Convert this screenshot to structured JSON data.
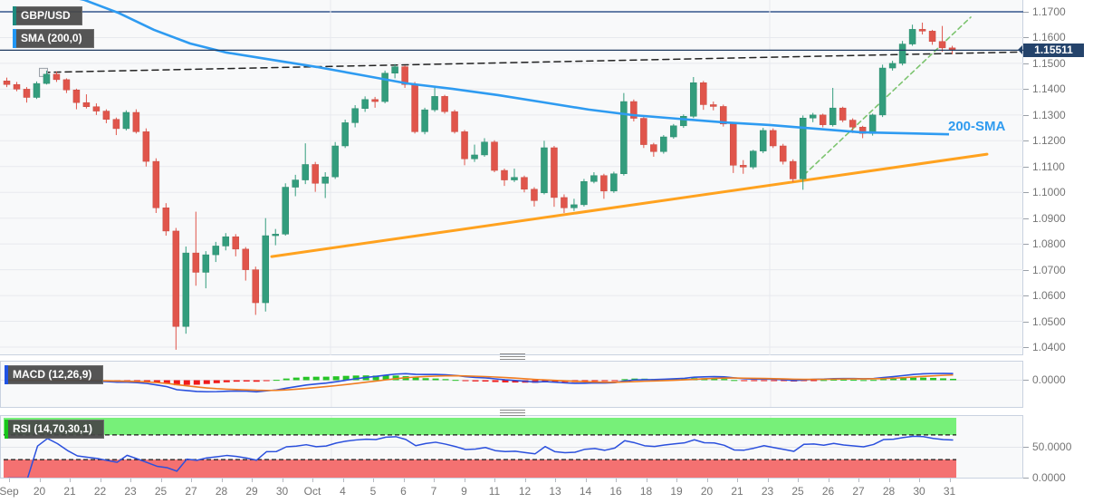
{
  "legend": {
    "symbol_badge": "GBP/USD",
    "sma_badge": "SMA (200,0)",
    "macd_badge": "MACD (12,26,9)",
    "rsi_badge": "RSI (14,70,30,1)",
    "sma_line_label": "200-SMA",
    "badge_accents": {
      "symbol": "#1d8a7e",
      "sma": "#2196f3",
      "macd": "#2053e3",
      "rsi": "#18c51b"
    }
  },
  "price_badge": {
    "text": "1.15511",
    "bg": "#24436b"
  },
  "axes": {
    "price_ticks": [
      "1.1700",
      "1.1600",
      "1.1500",
      "1.1400",
      "1.1300",
      "1.1200",
      "1.1100",
      "1.1000",
      "1.0900",
      "1.0800",
      "1.0700",
      "1.0600",
      "1.0500",
      "1.0400"
    ],
    "macd_ticks": [
      "0.0000"
    ],
    "rsi_ticks": [
      "50.0000",
      "0.0000"
    ],
    "date_labels": [
      "Sep",
      "20",
      "21",
      "22",
      "23",
      "25",
      "27",
      "28",
      "29",
      "30",
      "Oct",
      "4",
      "5",
      "6",
      "7",
      "9",
      "11",
      "12",
      "13",
      "14",
      "16",
      "18",
      "19",
      "20",
      "21",
      "23",
      "25",
      "26",
      "27",
      "28",
      "30",
      "31"
    ]
  },
  "chart_data": {
    "type": "candlestick",
    "symbol": "GBP/USD",
    "title": "GBP/USD with SMA(200), MACD(12,26,9), RSI(14,70,30,1)",
    "y_axis": {
      "min": 1.04,
      "max": 1.17,
      "grid": true
    },
    "current_price": 1.15511,
    "candles": [
      [
        1.1432,
        1.1445,
        1.1408,
        1.1418
      ],
      [
        1.1418,
        1.1428,
        1.1392,
        1.14
      ],
      [
        1.14,
        1.1408,
        1.1348,
        1.1368
      ],
      [
        1.1368,
        1.143,
        1.1362,
        1.1422
      ],
      [
        1.1422,
        1.1472,
        1.1418,
        1.1458
      ],
      [
        1.1458,
        1.1468,
        1.1428,
        1.1437
      ],
      [
        1.1437,
        1.1442,
        1.1385,
        1.1397
      ],
      [
        1.1397,
        1.1402,
        1.1322,
        1.1348
      ],
      [
        1.1348,
        1.138,
        1.1325,
        1.1332
      ],
      [
        1.1332,
        1.1345,
        1.13,
        1.1315
      ],
      [
        1.1315,
        1.1322,
        1.1268,
        1.1283
      ],
      [
        1.1283,
        1.129,
        1.1222,
        1.1247
      ],
      [
        1.1247,
        1.1318,
        1.124,
        1.131
      ],
      [
        1.131,
        1.1322,
        1.1228,
        1.1235
      ],
      [
        1.1235,
        1.1248,
        1.11,
        1.112
      ],
      [
        1.112,
        1.1132,
        1.092,
        1.094
      ],
      [
        1.094,
        1.0958,
        1.0832,
        1.085
      ],
      [
        1.085,
        1.0862,
        1.039,
        1.048
      ],
      [
        1.048,
        1.079,
        1.0452,
        1.0765
      ],
      [
        1.0765,
        1.0925,
        1.0638,
        1.069
      ],
      [
        1.069,
        1.0772,
        1.0628,
        1.0758
      ],
      [
        1.0758,
        1.0808,
        1.073,
        1.0792
      ],
      [
        1.0792,
        1.0842,
        1.0775,
        1.0828
      ],
      [
        1.0828,
        1.0838,
        1.0752,
        1.078
      ],
      [
        1.078,
        1.0788,
        1.0658,
        1.07
      ],
      [
        1.07,
        1.0712,
        1.0525,
        1.0572
      ],
      [
        1.0572,
        1.09,
        1.0538,
        1.0832
      ],
      [
        1.0832,
        1.0858,
        1.0795,
        1.0838
      ],
      [
        1.0838,
        1.1035,
        1.0832,
        1.102
      ],
      [
        1.102,
        1.1068,
        1.0985,
        1.1048
      ],
      [
        1.1048,
        1.119,
        1.1032,
        1.1108
      ],
      [
        1.1108,
        1.1118,
        1.1002,
        1.1035
      ],
      [
        1.1035,
        1.1078,
        1.0978,
        1.106
      ],
      [
        1.106,
        1.1195,
        1.1052,
        1.118
      ],
      [
        1.118,
        1.1282,
        1.1172,
        1.127
      ],
      [
        1.127,
        1.1338,
        1.1252,
        1.1325
      ],
      [
        1.1325,
        1.1372,
        1.1312,
        1.136
      ],
      [
        1.136,
        1.137,
        1.1328,
        1.1352
      ],
      [
        1.1352,
        1.1472,
        1.1345,
        1.1462
      ],
      [
        1.1462,
        1.1497,
        1.1442,
        1.1487
      ],
      [
        1.1487,
        1.1492,
        1.1405,
        1.1418
      ],
      [
        1.1418,
        1.1428,
        1.1228,
        1.1235
      ],
      [
        1.1235,
        1.1328,
        1.1225,
        1.132
      ],
      [
        1.132,
        1.1405,
        1.1312,
        1.1372
      ],
      [
        1.1372,
        1.1378,
        1.1305,
        1.1313
      ],
      [
        1.1313,
        1.132,
        1.1228,
        1.1235
      ],
      [
        1.1235,
        1.1242,
        1.1105,
        1.113
      ],
      [
        1.113,
        1.1185,
        1.1118,
        1.1145
      ],
      [
        1.1145,
        1.121,
        1.1138,
        1.1195
      ],
      [
        1.1195,
        1.1202,
        1.1078,
        1.1085
      ],
      [
        1.1085,
        1.1092,
        1.1025,
        1.1048
      ],
      [
        1.1048,
        1.1092,
        1.104,
        1.1058
      ],
      [
        1.1058,
        1.1065,
        1.1,
        1.1012
      ],
      [
        1.1012,
        1.102,
        1.0945,
        1.0968
      ],
      [
        1.0998,
        1.12,
        1.0992,
        1.1173
      ],
      [
        1.1173,
        1.118,
        1.0944,
        1.098
      ],
      [
        1.098,
        1.0992,
        1.092,
        1.094
      ],
      [
        1.094,
        1.0975,
        1.0928,
        1.0952
      ],
      [
        1.0952,
        1.1052,
        1.0945,
        1.1042
      ],
      [
        1.1042,
        1.1078,
        1.1035,
        1.1065
      ],
      [
        1.1065,
        1.1072,
        1.0975,
        1.1005
      ],
      [
        1.1005,
        1.108,
        1.0998,
        1.1072
      ],
      [
        1.1072,
        1.1385,
        1.1065,
        1.1352
      ],
      [
        1.1352,
        1.136,
        1.1275,
        1.1287
      ],
      [
        1.1287,
        1.1295,
        1.1172,
        1.1185
      ],
      [
        1.1185,
        1.1192,
        1.1138,
        1.1158
      ],
      [
        1.1158,
        1.1222,
        1.115,
        1.1215
      ],
      [
        1.1215,
        1.1265,
        1.1208,
        1.1258
      ],
      [
        1.1258,
        1.1302,
        1.125,
        1.1295
      ],
      [
        1.1295,
        1.1447,
        1.1288,
        1.1425
      ],
      [
        1.1425,
        1.1432,
        1.132,
        1.134
      ],
      [
        1.134,
        1.1352,
        1.1318,
        1.1333
      ],
      [
        1.1333,
        1.134,
        1.1255,
        1.1265
      ],
      [
        1.1265,
        1.1272,
        1.1075,
        1.1105
      ],
      [
        1.1105,
        1.1125,
        1.1072,
        1.1098
      ],
      [
        1.1098,
        1.1165,
        1.109,
        1.116
      ],
      [
        1.116,
        1.125,
        1.1152,
        1.124
      ],
      [
        1.124,
        1.1248,
        1.1172,
        1.118
      ],
      [
        1.118,
        1.1188,
        1.1108,
        1.112
      ],
      [
        1.112,
        1.1128,
        1.104,
        1.1052
      ],
      [
        1.1052,
        1.1298,
        1.101,
        1.1288
      ],
      [
        1.1288,
        1.1308,
        1.1272,
        1.13
      ],
      [
        1.13,
        1.1305,
        1.1252,
        1.1262
      ],
      [
        1.1262,
        1.1405,
        1.1255,
        1.1327
      ],
      [
        1.1327,
        1.1332,
        1.1272,
        1.128
      ],
      [
        1.128,
        1.1287,
        1.123,
        1.1253
      ],
      [
        1.1253,
        1.1258,
        1.121,
        1.1228
      ],
      [
        1.1228,
        1.1305,
        1.122,
        1.13
      ],
      [
        1.13,
        1.1495,
        1.1292,
        1.1482
      ],
      [
        1.1482,
        1.151,
        1.1472,
        1.15
      ],
      [
        1.15,
        1.1587,
        1.1492,
        1.1575
      ],
      [
        1.1575,
        1.165,
        1.1568,
        1.1632
      ],
      [
        1.1632,
        1.1658,
        1.1612,
        1.1625
      ],
      [
        1.1625,
        1.163,
        1.1572,
        1.1585
      ],
      [
        1.1585,
        1.1645,
        1.1545,
        1.156
      ],
      [
        1.156,
        1.1568,
        1.1535,
        1.1551
      ]
    ],
    "sma200": {
      "period": 200,
      "points": [
        [
          60,
          1.1772
        ],
        [
          93,
          1.1746
        ],
        [
          130,
          1.1697
        ],
        [
          170,
          1.163
        ],
        [
          210,
          1.1577
        ],
        [
          250,
          1.1542
        ],
        [
          300,
          1.1514
        ],
        [
          350,
          1.1486
        ],
        [
          400,
          1.1454
        ],
        [
          450,
          1.1422
        ],
        [
          500,
          1.1401
        ],
        [
          550,
          1.1377
        ],
        [
          600,
          1.1349
        ],
        [
          650,
          1.1321
        ],
        [
          700,
          1.1299
        ],
        [
          750,
          1.1285
        ],
        [
          800,
          1.1271
        ],
        [
          850,
          1.1261
        ],
        [
          900,
          1.1247
        ],
        [
          950,
          1.1233
        ],
        [
          1000,
          1.1229
        ],
        [
          1048,
          1.1225
        ]
      ]
    },
    "trendlines": {
      "resistance_dashed_black": {
        "from": [
          48,
          1.1465
        ],
        "to": [
          1128,
          1.1544
        ],
        "color": "#222222",
        "style": "dashed"
      },
      "support_orange": {
        "from": [
          300,
          1.0751
        ],
        "to": [
          1090,
          1.1148
        ],
        "color": "#ffa21f",
        "style": "solid"
      },
      "projection_green_dashed": {
        "from": [
          888,
          1.1068
        ],
        "to": [
          1072,
          1.1679
        ],
        "color": "#7cc46f",
        "style": "dashed"
      }
    },
    "indicators": {
      "macd": {
        "fast": 12,
        "slow": 26,
        "signal": 9,
        "zero_label": "0.0000",
        "colors": {
          "macd_line": "#2b50dd",
          "signal_line": "#ef7d22",
          "hist_up": "#27c427",
          "hist_down": "#ef1a1a"
        }
      },
      "rsi": {
        "period": 14,
        "overbought": 70,
        "oversold": 30,
        "colors": {
          "line": "#2b50dd",
          "band_high": "#77f079",
          "band_low": "#f47171"
        }
      }
    },
    "colors": {
      "up": "#339d7d",
      "down": "#e0554b",
      "sma": "#2e9bf1",
      "price_line": "#1e3a5f",
      "grid": "#e7e9ee"
    }
  }
}
